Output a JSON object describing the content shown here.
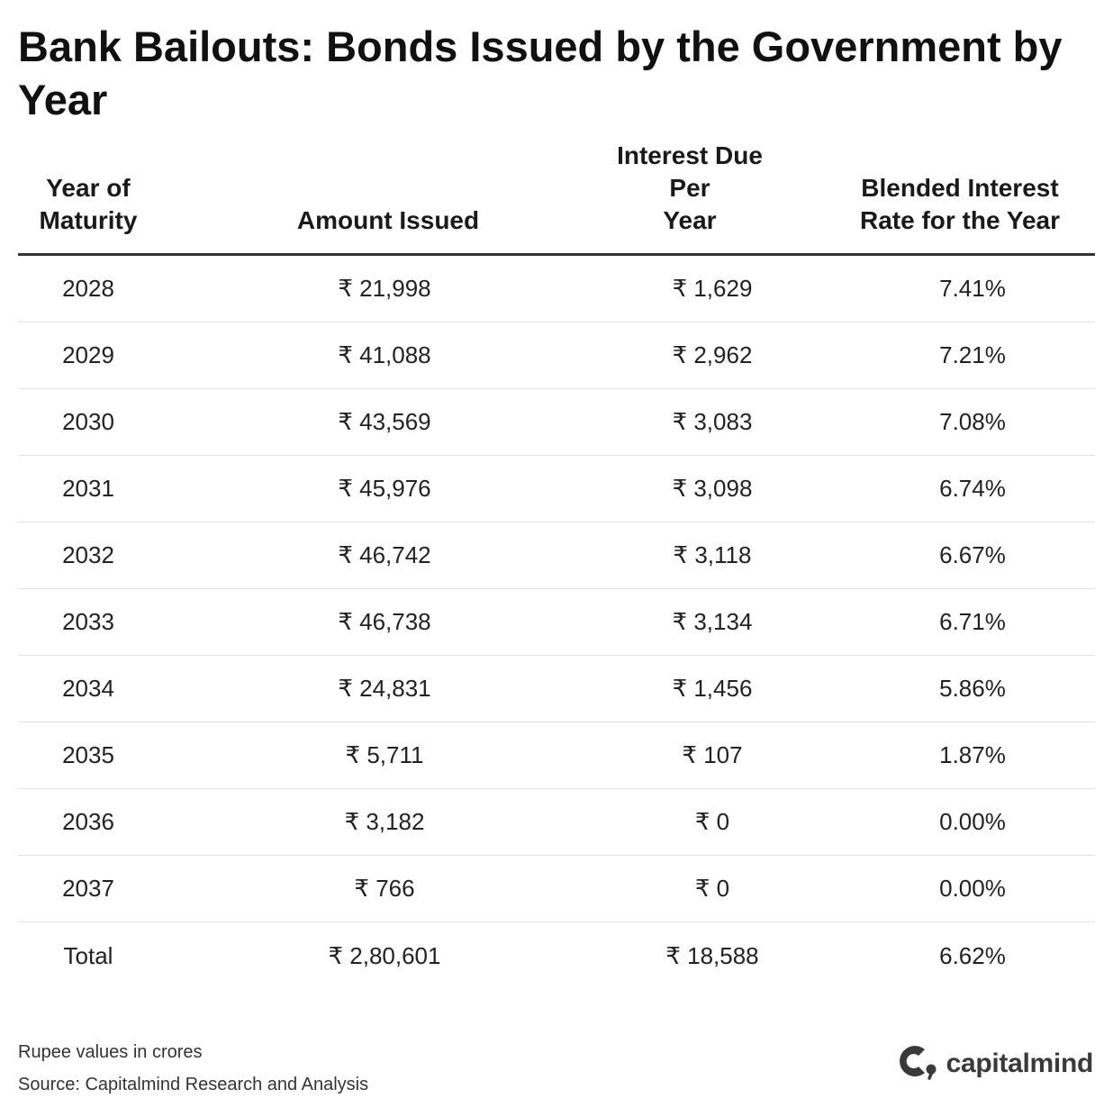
{
  "title": "Bank Bailouts: Bonds Issued by the Government by Year",
  "chart_data": {
    "type": "table",
    "title": "Bank Bailouts: Bonds Issued by the Government by Year",
    "columns": [
      "Year of\nMaturity",
      "Amount Issued",
      "Interest Due Per\nYear",
      "Blended Interest\nRate for the Year"
    ],
    "rows": [
      [
        "2028",
        "₹ 21,998",
        "₹ 1,629",
        "7.41%"
      ],
      [
        "2029",
        "₹ 41,088",
        "₹ 2,962",
        "7.21%"
      ],
      [
        "2030",
        "₹ 43,569",
        "₹ 3,083",
        "7.08%"
      ],
      [
        "2031",
        "₹ 45,976",
        "₹ 3,098",
        "6.74%"
      ],
      [
        "2032",
        "₹ 46,742",
        "₹ 3,118",
        "6.67%"
      ],
      [
        "2033",
        "₹ 46,738",
        "₹ 3,134",
        "6.71%"
      ],
      [
        "2034",
        "₹ 24,831",
        "₹ 1,456",
        "5.86%"
      ],
      [
        "2035",
        "₹ 5,711",
        "₹ 107",
        "1.87%"
      ],
      [
        "2036",
        "₹ 3,182",
        "₹ 0",
        "0.00%"
      ],
      [
        "2037",
        "₹ 766",
        "₹ 0",
        "0.00%"
      ],
      [
        "Total",
        "₹ 2,80,601",
        "₹ 18,588",
        "6.62%"
      ]
    ]
  },
  "footer": {
    "note": "Rupee values in crores",
    "source": "Source: Capitalmind Research and Analysis"
  },
  "logo": {
    "text": "capitalmind",
    "icon": "capitalmind-logo-icon",
    "color": "#3a3a3a"
  }
}
